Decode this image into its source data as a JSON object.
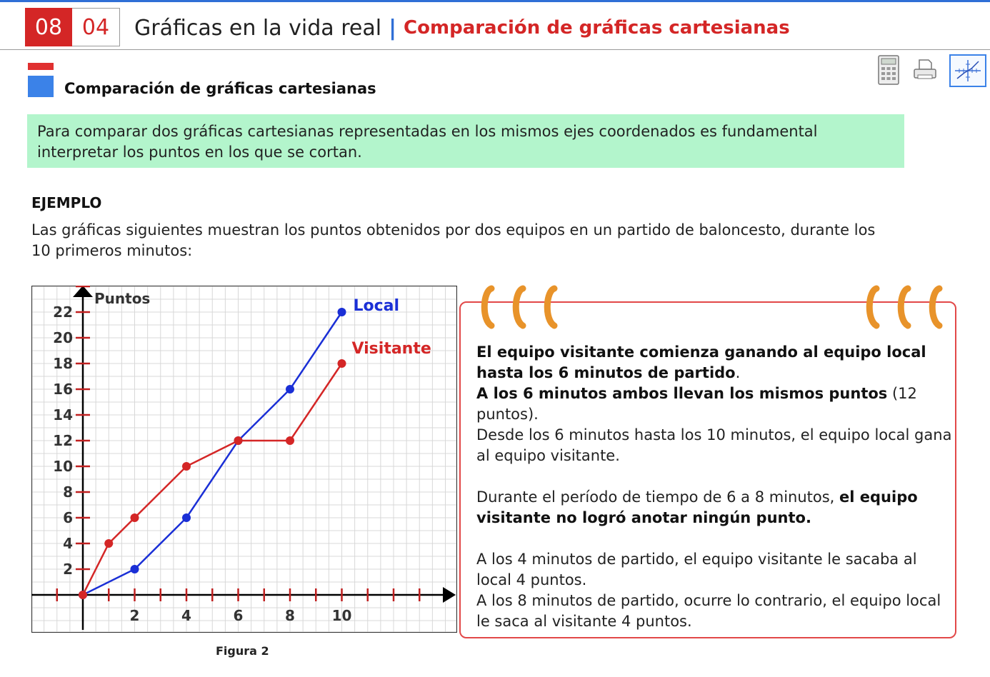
{
  "header": {
    "unit": "08",
    "lesson": "04",
    "title": "Gráficas en la vida real",
    "separator": "|",
    "subtitle": "Comparación de gráficas cartesianas"
  },
  "section": {
    "title": "Comparación de gráficas cartesianas"
  },
  "toolbar": {
    "calculator_icon": "calculator-icon",
    "print_icon": "print-icon",
    "graph_icon": "graph-axes-icon"
  },
  "note": {
    "text": "Para comparar dos gráficas cartesianas representadas en los mismos ejes coordenados es fundamental interpretar los puntos en los que se cortan."
  },
  "example": {
    "heading": "EJEMPLO",
    "intro": "Las gráficas siguientes muestran los puntos obtenidos por dos equipos en un partido de baloncesto, durante los 10 primeros minutos:"
  },
  "chart_data": {
    "type": "line",
    "ylabel": "Puntos",
    "xlim": [
      -2,
      14
    ],
    "ylim": [
      -4,
      25
    ],
    "x_ticks": [
      2,
      4,
      6,
      8,
      10
    ],
    "y_ticks": [
      2,
      4,
      6,
      8,
      10,
      12,
      14,
      16,
      18,
      20,
      22
    ],
    "grid": true,
    "series": [
      {
        "name": "Local",
        "color": "#1a2fd6",
        "x": [
          0,
          2,
          4,
          6,
          8,
          10
        ],
        "y": [
          0,
          2,
          6,
          12,
          16,
          22
        ]
      },
      {
        "name": "Visitante",
        "color": "#d42626",
        "x": [
          0,
          1,
          2,
          4,
          6,
          8,
          10
        ],
        "y": [
          0,
          4,
          6,
          10,
          12,
          12,
          18
        ]
      }
    ]
  },
  "figure_caption": "Figura 2",
  "explanation": {
    "p1_bold": "El equipo visitante comienza ganando al equipo local hasta los 6 minutos de partido",
    "p1_end": ".",
    "p2_bold": "A los 6 minutos ambos llevan los mismos puntos",
    "p2_rest": " (12 puntos).",
    "p3": "Desde los 6 minutos hasta los 10 minutos, el equipo local gana al equipo visitante.",
    "p4_start": "Durante el período de tiempo de 6 a 8 minutos, ",
    "p4_bold": "el equipo visitante no logró anotar ningún punto.",
    "p5": "A los 4 minutos de partido, el equipo visitante le sacaba al local 4 puntos.",
    "p6": "A los 8 minutos de partido, ocurre lo contrario, el equipo local le saca al visitante 4 puntos."
  },
  "colors": {
    "accent_red": "#d42626",
    "accent_blue": "#2f6fd6",
    "note_green": "#b3f5cc"
  }
}
